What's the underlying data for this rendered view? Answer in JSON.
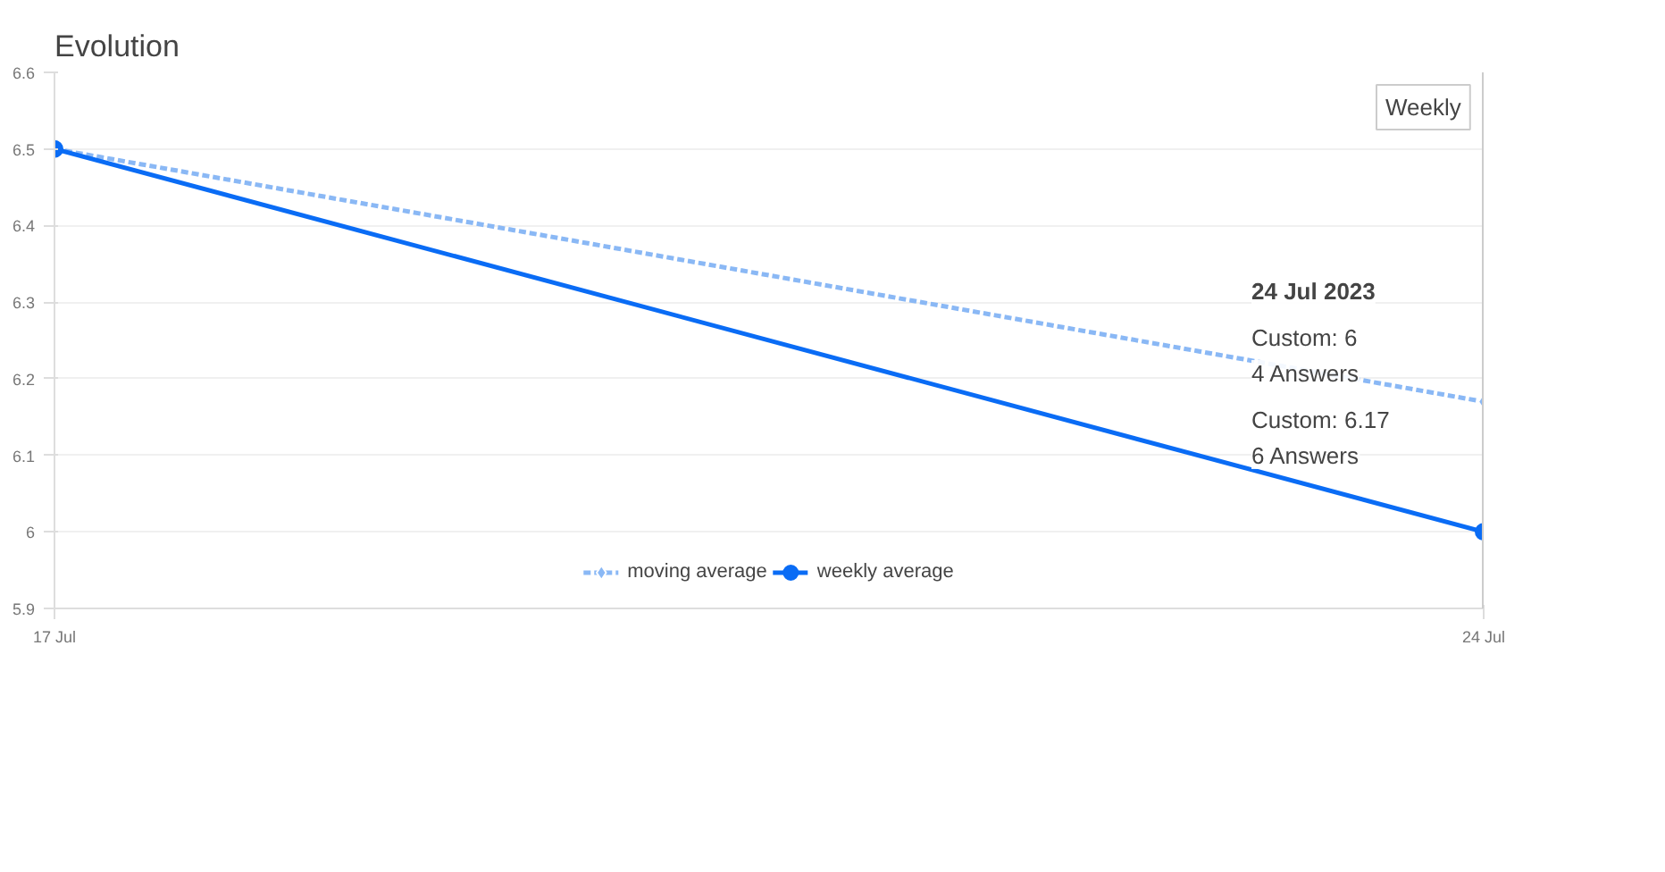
{
  "chart_data": {
    "type": "line",
    "title": "Evolution",
    "x": [
      "2023-07-17",
      "2023-07-24"
    ],
    "series": [
      {
        "name": "moving average",
        "color": "#8ab8f5",
        "values": [
          6.5,
          6.17
        ],
        "line_style": "dashed",
        "marker": "diamond"
      },
      {
        "name": "weekly average",
        "color": "#0a6cf5",
        "values": [
          6.5,
          6
        ],
        "line_style": "solid",
        "marker": "circle"
      }
    ],
    "xlim": [
      "2023-07-17",
      "2023-07-24"
    ],
    "xticks": [
      {
        "value": "2023-07-17",
        "label": "17 Jul"
      },
      {
        "value": "2023-07-24",
        "label": "24 Jul"
      }
    ],
    "ylim": [
      5.9,
      6.6
    ],
    "yticks": [
      5.9,
      6,
      6.1,
      6.2,
      6.3,
      6.4,
      6.5,
      6.6
    ],
    "grid": "y",
    "legend": "bottom",
    "ref_lines": [
      {
        "axis": "x",
        "value": "2023-07-24",
        "color": "#cccccc"
      }
    ],
    "annotations": [
      "24 Jul 2023",
      "Custom: 6",
      "4 Answers",
      "Custom: 6.17",
      "6 Answers",
      "Weekly"
    ]
  }
}
